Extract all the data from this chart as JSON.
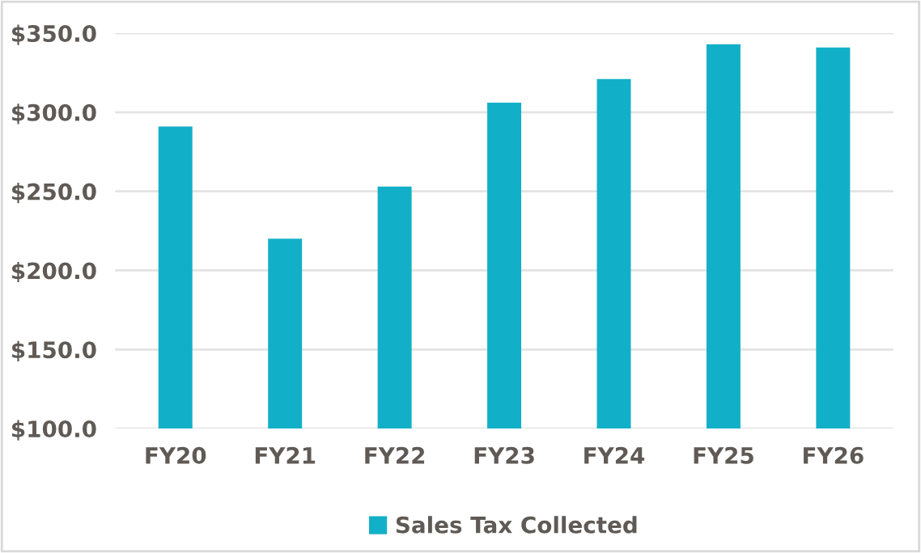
{
  "chart_data": {
    "type": "bar",
    "categories": [
      "FY20",
      "FY21",
      "FY22",
      "FY23",
      "FY24",
      "FY25",
      "FY26"
    ],
    "series": [
      {
        "name": "Sales Tax Collected",
        "color": "#12b0c8",
        "values": [
          291,
          220,
          253,
          306,
          321,
          343,
          341
        ]
      }
    ],
    "ylim": [
      100,
      350
    ],
    "yticks": [
      {
        "value": 100,
        "label": "$100.0"
      },
      {
        "value": 150,
        "label": "$150.0"
      },
      {
        "value": 200,
        "label": "$200.0"
      },
      {
        "value": 250,
        "label": "$250.0"
      },
      {
        "value": 300,
        "label": "$300.0"
      },
      {
        "value": 350,
        "label": "$350.0"
      }
    ],
    "grid": "y",
    "legend": "bottom"
  }
}
